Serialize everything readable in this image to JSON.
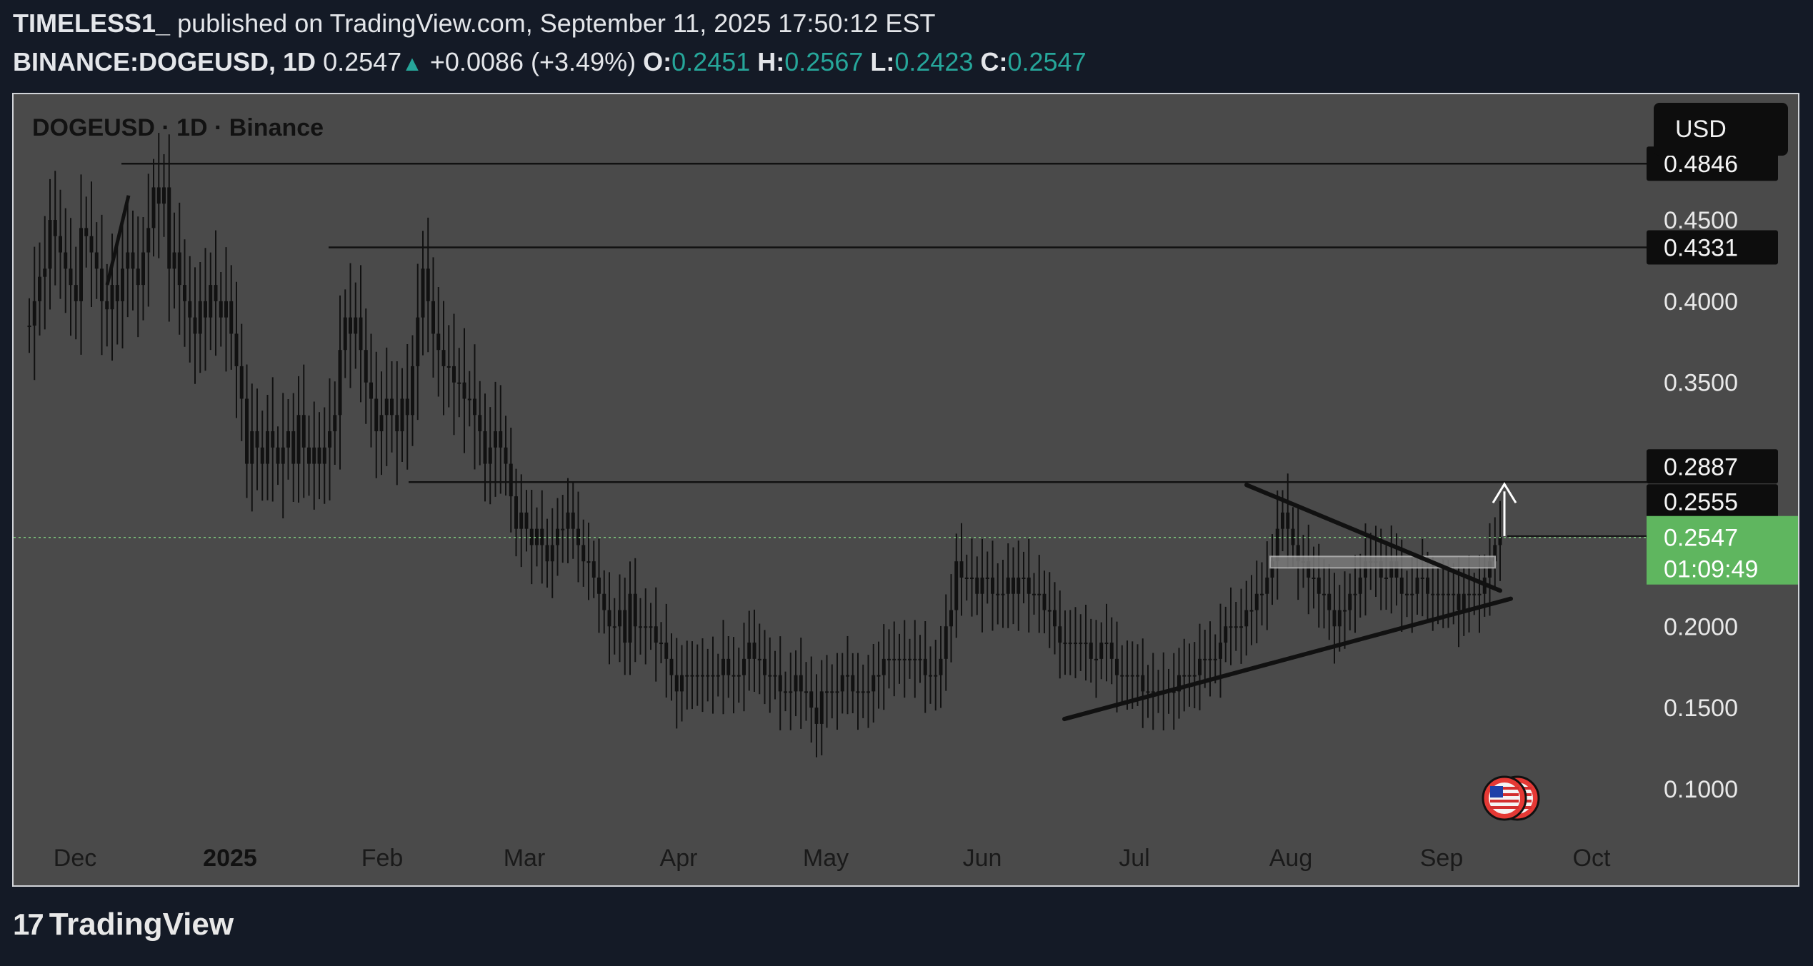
{
  "header": {
    "author": "TIMELESS1_",
    "published_text": "published on TradingView.com, September 11, 2025 17:50:12 EST",
    "symbol": "BINANCE:DOGEUSD, 1D",
    "last": "0.2547",
    "change": "+0.0086 (+3.49%)",
    "o_label": "O:",
    "o_value": "0.2451",
    "h_label": "H:",
    "h_value": "0.2567",
    "l_label": "L:",
    "l_value": "0.2423",
    "c_label": "C:",
    "c_value": "0.2547"
  },
  "chart_title": "DOGEUSD · 1D · Binance",
  "currency_button": "USD",
  "footer_brand": "TradingView",
  "footer_mark": "17",
  "colors": {
    "background": "#141a26",
    "chart_bg": "#4a4a4a",
    "candles": "#111111",
    "price_tag": "#0d0d0d",
    "current_price_tag": "#5fb65f",
    "current_price_line": "#7ec97e",
    "up": "#26a69a"
  },
  "icons": [
    "tradingview-logo-icon",
    "us-flag-icon",
    "arrow-up-icon"
  ],
  "chart_data": {
    "type": "candlestick",
    "title": "DOGEUSD · 1D · Binance",
    "y_ticks": [
      "0.4500",
      "0.4000",
      "0.3500",
      "0.2000",
      "0.1500",
      "0.1000"
    ],
    "x_ticks": [
      "Dec",
      "2025",
      "Feb",
      "Mar",
      "Apr",
      "May",
      "Jun",
      "Jul",
      "Aug",
      "Sep",
      "Oct"
    ],
    "ylim": [
      0.07,
      0.495
    ],
    "grid": false,
    "price_tags": [
      {
        "label": "0.4846",
        "value": 0.4846
      },
      {
        "label": "0.4331",
        "value": 0.4331
      },
      {
        "label": "0.2887",
        "value": 0.2887
      },
      {
        "label": "0.2555",
        "value": 0.2555
      }
    ],
    "current_price": {
      "label": "0.2547",
      "value": 0.2547,
      "countdown": "01:09:49"
    },
    "horizontal_levels": [
      {
        "value": 0.4846,
        "start": "Dec"
      },
      {
        "value": 0.4331,
        "start": "Jan"
      },
      {
        "value": 0.2887,
        "start": "Feb"
      }
    ],
    "series_close": [
      0.385,
      0.4,
      0.415,
      0.42,
      0.45,
      0.44,
      0.43,
      0.42,
      0.41,
      0.4,
      0.445,
      0.44,
      0.43,
      0.42,
      0.4,
      0.395,
      0.41,
      0.4,
      0.42,
      0.43,
      0.42,
      0.41,
      0.43,
      0.445,
      0.47,
      0.46,
      0.47,
      0.42,
      0.43,
      0.41,
      0.4,
      0.39,
      0.38,
      0.4,
      0.39,
      0.41,
      0.4,
      0.39,
      0.4,
      0.38,
      0.36,
      0.34,
      0.3,
      0.32,
      0.31,
      0.3,
      0.32,
      0.31,
      0.3,
      0.31,
      0.32,
      0.3,
      0.33,
      0.31,
      0.3,
      0.31,
      0.3,
      0.31,
      0.32,
      0.33,
      0.37,
      0.39,
      0.38,
      0.39,
      0.37,
      0.35,
      0.34,
      0.32,
      0.33,
      0.34,
      0.33,
      0.32,
      0.34,
      0.33,
      0.36,
      0.39,
      0.42,
      0.4,
      0.38,
      0.37,
      0.36,
      0.36,
      0.35,
      0.35,
      0.34,
      0.34,
      0.33,
      0.32,
      0.3,
      0.31,
      0.32,
      0.31,
      0.3,
      0.28,
      0.26,
      0.27,
      0.26,
      0.25,
      0.26,
      0.25,
      0.24,
      0.25,
      0.26,
      0.26,
      0.27,
      0.26,
      0.25,
      0.24,
      0.24,
      0.23,
      0.22,
      0.21,
      0.2,
      0.2,
      0.21,
      0.19,
      0.22,
      0.2,
      0.2,
      0.2,
      0.2,
      0.19,
      0.19,
      0.18,
      0.17,
      0.16,
      0.17,
      0.17,
      0.17,
      0.17,
      0.17,
      0.17,
      0.17,
      0.17,
      0.18,
      0.17,
      0.17,
      0.17,
      0.18,
      0.19,
      0.18,
      0.18,
      0.17,
      0.17,
      0.17,
      0.16,
      0.16,
      0.16,
      0.17,
      0.16,
      0.16,
      0.15,
      0.14,
      0.16,
      0.16,
      0.16,
      0.16,
      0.17,
      0.17,
      0.16,
      0.16,
      0.16,
      0.16,
      0.17,
      0.17,
      0.18,
      0.18,
      0.18,
      0.18,
      0.18,
      0.18,
      0.18,
      0.18,
      0.17,
      0.17,
      0.17,
      0.18,
      0.2,
      0.21,
      0.24,
      0.23,
      0.23,
      0.23,
      0.22,
      0.23,
      0.23,
      0.22,
      0.22,
      0.22,
      0.23,
      0.22,
      0.23,
      0.23,
      0.22,
      0.22,
      0.22,
      0.21,
      0.21,
      0.2,
      0.19,
      0.19,
      0.19,
      0.19,
      0.19,
      0.19,
      0.18,
      0.18,
      0.19,
      0.19,
      0.18,
      0.17,
      0.17,
      0.17,
      0.17,
      0.17,
      0.16,
      0.16,
      0.16,
      0.16,
      0.16,
      0.16,
      0.16,
      0.17,
      0.17,
      0.17,
      0.17,
      0.18,
      0.18,
      0.18,
      0.18,
      0.19,
      0.2,
      0.2,
      0.2,
      0.2,
      0.21,
      0.21,
      0.22,
      0.22,
      0.23,
      0.24,
      0.26,
      0.27,
      0.26,
      0.25,
      0.24,
      0.24,
      0.23,
      0.23,
      0.22,
      0.22,
      0.21,
      0.2,
      0.21,
      0.21,
      0.22,
      0.22,
      0.23,
      0.24,
      0.24,
      0.24,
      0.23,
      0.23,
      0.24,
      0.23,
      0.22,
      0.22,
      0.22,
      0.23,
      0.23,
      0.22,
      0.22,
      0.22,
      0.22,
      0.22,
      0.22,
      0.21,
      0.22,
      0.22,
      0.22,
      0.22,
      0.23,
      0.24,
      0.25,
      0.255
    ],
    "annotations": [
      {
        "type": "trendline",
        "from": [
          "Jun",
          0.143
        ],
        "to": [
          "Sep",
          0.217
        ]
      },
      {
        "type": "trendline",
        "from": [
          "Jul",
          0.287
        ],
        "to": [
          "Sep",
          0.222
        ]
      },
      {
        "type": "arrow",
        "direction": "up"
      },
      {
        "type": "zone",
        "range": [
          0.236,
          0.243
        ]
      }
    ]
  }
}
